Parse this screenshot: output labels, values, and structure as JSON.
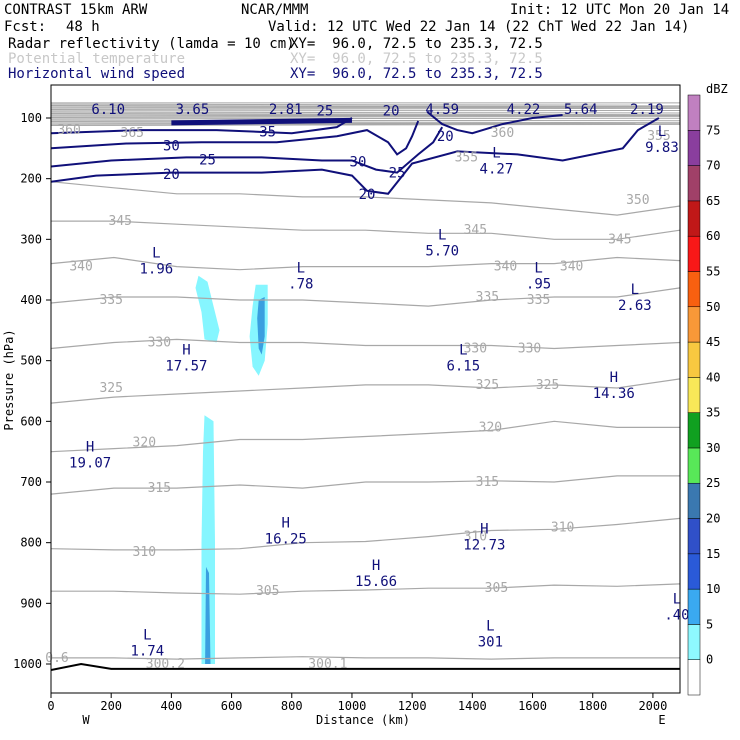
{
  "header": {
    "model": "CONTRAST 15km ARW",
    "org": "NCAR/MMM",
    "init": "Init: 12 UTC Mon 20 Jan 14",
    "fcst_label": "Fcst:",
    "fcst_value": "48 h",
    "valid": "Valid: 12 UTC Wed 22 Jan 14 (22 ChT Wed 22 Jan 14)",
    "fields": [
      {
        "name": "Radar reflectivity (lamda = 10 cm)",
        "xy": "XY=  96.0, 72.5 to 235.3, 72.5",
        "color": "#000000"
      },
      {
        "name": "Potential temperature",
        "xy": "XY=  96.0, 72.5 to 235.3, 72.5",
        "color": "#c8c8c8"
      },
      {
        "name": "Horizontal wind speed",
        "xy": "XY=  96.0, 72.5 to 235.3, 72.5",
        "color": "#10107a"
      }
    ]
  },
  "colors": {
    "theta": "#a8a8a8",
    "wind": "#10107a",
    "hl_label": "#10107a",
    "reflect_light": "#86f6ff",
    "reflect_mid": "#3a9fe0",
    "terrain": "#000000"
  },
  "chart_data": {
    "type": "cross-section",
    "xlabel": "Distance (km)",
    "ylabel": "Pressure (hPa)",
    "xlim": [
      0,
      2090
    ],
    "ylim_hPa": [
      1050,
      75
    ],
    "x_ticks": [
      0,
      200,
      400,
      600,
      800,
      1000,
      1200,
      1400,
      1600,
      1800,
      2000
    ],
    "y_ticks": [
      100,
      200,
      300,
      400,
      500,
      600,
      700,
      800,
      900,
      1000
    ],
    "x_end_labels": {
      "left": "W",
      "right": "E"
    },
    "colorbar": {
      "unit": "dBZ",
      "levels": [
        0,
        5,
        10,
        15,
        20,
        25,
        30,
        35,
        40,
        45,
        50,
        55,
        60,
        65,
        70,
        75
      ],
      "colors": [
        "#ffffff",
        "#8ef9ff",
        "#3aa9f0",
        "#2a5ad8",
        "#3050c8",
        "#3a78b0",
        "#58e858",
        "#10a020",
        "#f8e858",
        "#f8c840",
        "#f89838",
        "#f86010",
        "#f81818",
        "#c01818",
        "#a04068",
        "#8a3e9e",
        "#c080c0"
      ]
    },
    "theta_contours": [
      {
        "level": 300,
        "y": [
          990,
          990,
          992,
          990,
          988,
          990,
          990,
          992,
          990,
          990,
          990
        ]
      },
      {
        "level": 305,
        "y": [
          880,
          880,
          883,
          885,
          880,
          878,
          875,
          875,
          870,
          872,
          868
        ]
      },
      {
        "level": 310,
        "y": [
          810,
          812,
          812,
          810,
          800,
          798,
          790,
          780,
          778,
          770,
          760
        ]
      },
      {
        "level": 315,
        "y": [
          720,
          710,
          710,
          705,
          710,
          700,
          700,
          698,
          700,
          690,
          690
        ]
      },
      {
        "level": 320,
        "y": [
          650,
          645,
          640,
          630,
          630,
          625,
          620,
          615,
          600,
          610,
          610
        ]
      },
      {
        "level": 325,
        "y": [
          570,
          560,
          555,
          550,
          545,
          540,
          540,
          545,
          540,
          545,
          530
        ]
      },
      {
        "level": 330,
        "y": [
          480,
          470,
          465,
          470,
          470,
          475,
          475,
          475,
          480,
          475,
          470
        ]
      },
      {
        "level": 335,
        "y": [
          405,
          395,
          395,
          400,
          400,
          405,
          410,
          400,
          395,
          395,
          380
        ]
      },
      {
        "level": 340,
        "y": [
          340,
          330,
          345,
          350,
          345,
          345,
          345,
          340,
          340,
          330,
          335
        ]
      },
      {
        "level": 345,
        "y": [
          270,
          270,
          275,
          280,
          285,
          285,
          290,
          290,
          300,
          300,
          285
        ]
      },
      {
        "level": 350,
        "y": [
          205,
          215,
          225,
          225,
          230,
          230,
          235,
          240,
          250,
          260,
          245
        ]
      }
    ],
    "theta_labels": [
      {
        "text": "300.2",
        "x": 380,
        "p": 1000
      },
      {
        "text": "300.1",
        "x": 920,
        "p": 1000
      },
      {
        "text": "305",
        "x": 720,
        "p": 880
      },
      {
        "text": "305",
        "x": 1480,
        "p": 875
      },
      {
        "text": "310",
        "x": 310,
        "p": 815
      },
      {
        "text": "310",
        "x": 1410,
        "p": 790
      },
      {
        "text": "310",
        "x": 1700,
        "p": 775
      },
      {
        "text": "315",
        "x": 360,
        "p": 710
      },
      {
        "text": "315",
        "x": 1450,
        "p": 700
      },
      {
        "text": "320",
        "x": 310,
        "p": 635
      },
      {
        "text": "320",
        "x": 1460,
        "p": 610
      },
      {
        "text": "325",
        "x": 200,
        "p": 545
      },
      {
        "text": "325",
        "x": 1450,
        "p": 540
      },
      {
        "text": "325",
        "x": 1650,
        "p": 540
      },
      {
        "text": "330",
        "x": 360,
        "p": 470
      },
      {
        "text": "330",
        "x": 1410,
        "p": 480
      },
      {
        "text": "330",
        "x": 1590,
        "p": 480
      },
      {
        "text": "335",
        "x": 200,
        "p": 400
      },
      {
        "text": "335",
        "x": 1450,
        "p": 395
      },
      {
        "text": "335",
        "x": 1620,
        "p": 400
      },
      {
        "text": "340",
        "x": 100,
        "p": 345
      },
      {
        "text": "340",
        "x": 1510,
        "p": 345
      },
      {
        "text": "340",
        "x": 1730,
        "p": 345
      },
      {
        "text": "345",
        "x": 230,
        "p": 270
      },
      {
        "text": "345",
        "x": 1410,
        "p": 285
      },
      {
        "text": "345",
        "x": 1890,
        "p": 300
      },
      {
        "text": "350",
        "x": 1950,
        "p": 235
      },
      {
        "text": "355",
        "x": 1380,
        "p": 165
      },
      {
        "text": "355",
        "x": 2020,
        "p": 130
      },
      {
        "text": "360",
        "x": 60,
        "p": 120
      },
      {
        "text": "360",
        "x": 1500,
        "p": 125
      },
      {
        "text": "365",
        "x": 270,
        "p": 125
      },
      {
        "text": "0.6",
        "x": 20,
        "p": 990
      }
    ],
    "wind_contours": [
      {
        "level": 20,
        "points": [
          [
            0,
            205
          ],
          [
            150,
            195
          ],
          [
            400,
            190
          ],
          [
            700,
            190
          ],
          [
            900,
            185
          ],
          [
            1000,
            195
          ],
          [
            1050,
            220
          ],
          [
            1120,
            225
          ],
          [
            1200,
            175
          ],
          [
            1350,
            155
          ],
          [
            1550,
            160
          ],
          [
            1700,
            170
          ],
          [
            1900,
            150
          ],
          [
            1950,
            120
          ],
          [
            2020,
            100
          ]
        ]
      },
      {
        "level": 25,
        "points": [
          [
            0,
            180
          ],
          [
            200,
            170
          ],
          [
            450,
            165
          ],
          [
            700,
            165
          ],
          [
            900,
            170
          ],
          [
            1000,
            170
          ],
          [
            1080,
            185
          ],
          [
            1150,
            190
          ],
          [
            1220,
            160
          ],
          [
            1270,
            140
          ],
          [
            1300,
            115
          ]
        ]
      },
      {
        "level": 30,
        "points": [
          [
            0,
            150
          ],
          [
            250,
            142
          ],
          [
            500,
            140
          ],
          [
            750,
            140
          ],
          [
            950,
            130
          ],
          [
            1050,
            120
          ],
          [
            1120,
            140
          ],
          [
            1150,
            160
          ],
          [
            1180,
            150
          ],
          [
            1200,
            130
          ],
          [
            1220,
            105
          ]
        ]
      },
      {
        "level": 35,
        "points": [
          [
            0,
            125
          ],
          [
            300,
            120
          ],
          [
            550,
            120
          ],
          [
            800,
            125
          ],
          [
            950,
            115
          ],
          [
            1000,
            100
          ]
        ]
      },
      {
        "level": 25,
        "points": [
          [
            1250,
            90
          ],
          [
            1300,
            110
          ],
          [
            1350,
            120
          ],
          [
            1400,
            125
          ],
          [
            1500,
            110
          ],
          [
            1600,
            100
          ],
          [
            1700,
            95
          ]
        ]
      }
    ],
    "wind_labels": [
      {
        "text": "20",
        "x": 400,
        "p": 192
      },
      {
        "text": "25",
        "x": 520,
        "p": 168
      },
      {
        "text": "30",
        "x": 400,
        "p": 145
      },
      {
        "text": "35",
        "x": 720,
        "p": 122
      },
      {
        "text": "30",
        "x": 1020,
        "p": 172
      },
      {
        "text": "25",
        "x": 1150,
        "p": 190
      },
      {
        "text": "20",
        "x": 1050,
        "p": 225
      },
      {
        "text": "20",
        "x": 1130,
        "p": 88
      },
      {
        "text": "20",
        "x": 1310,
        "p": 130
      },
      {
        "text": "25",
        "x": 910,
        "p": 88
      }
    ],
    "upper_values": [
      {
        "text": "6.10",
        "x": 190
      },
      {
        "text": "3.65",
        "x": 470
      },
      {
        "text": "2.81",
        "x": 780
      },
      {
        "text": "4.59",
        "x": 1300
      },
      {
        "text": "4.22",
        "x": 1570
      },
      {
        "text": "5.64",
        "x": 1760
      },
      {
        "text": "2.19",
        "x": 1980
      }
    ],
    "hl_markers": [
      {
        "sym": "L",
        "value": "1.96",
        "x": 350,
        "p": 330
      },
      {
        "sym": "L",
        "value": ".78",
        "x": 830,
        "p": 355
      },
      {
        "sym": "L",
        "value": "5.70",
        "x": 1300,
        "p": 300
      },
      {
        "sym": "L",
        "value": "4.27",
        "x": 1480,
        "p": 165
      },
      {
        "sym": "L",
        "value": ".95",
        "x": 1620,
        "p": 355
      },
      {
        "sym": "L",
        "value": "2.63",
        "x": 1940,
        "p": 390
      },
      {
        "sym": "L",
        "value": "9.83",
        "x": 2030,
        "p": 130
      },
      {
        "sym": "H",
        "value": "17.57",
        "x": 450,
        "p": 490
      },
      {
        "sym": "L",
        "value": "6.15",
        "x": 1370,
        "p": 490
      },
      {
        "sym": "H",
        "value": "14.36",
        "x": 1870,
        "p": 535
      },
      {
        "sym": "H",
        "value": "19.07",
        "x": 130,
        "p": 650
      },
      {
        "sym": "H",
        "value": "16.25",
        "x": 780,
        "p": 775
      },
      {
        "sym": "H",
        "value": "12.73",
        "x": 1440,
        "p": 785
      },
      {
        "sym": "H",
        "value": "15.66",
        "x": 1080,
        "p": 845
      },
      {
        "sym": "L",
        "value": ".40",
        "x": 2080,
        "p": 900
      },
      {
        "sym": "L",
        "value": "1.74",
        "x": 320,
        "p": 960
      },
      {
        "sym": "L",
        "value": "301",
        "x": 1460,
        "p": 945
      }
    ],
    "reflectivity_regions": [
      {
        "dbz": 5,
        "points": [
          [
            490,
            360
          ],
          [
            520,
            370
          ],
          [
            540,
            410
          ],
          [
            560,
            450
          ],
          [
            550,
            470
          ],
          [
            510,
            465
          ],
          [
            500,
            420
          ],
          [
            480,
            380
          ]
        ]
      },
      {
        "dbz": 5,
        "points": [
          [
            680,
            375
          ],
          [
            720,
            375
          ],
          [
            720,
            440
          ],
          [
            710,
            500
          ],
          [
            690,
            525
          ],
          [
            670,
            510
          ],
          [
            660,
            460
          ],
          [
            670,
            410
          ]
        ]
      },
      {
        "dbz": 10,
        "points": [
          [
            690,
            400
          ],
          [
            710,
            395
          ],
          [
            710,
            460
          ],
          [
            700,
            490
          ],
          [
            690,
            480
          ],
          [
            685,
            430
          ]
        ]
      },
      {
        "dbz": 5,
        "points": [
          [
            510,
            590
          ],
          [
            540,
            600
          ],
          [
            545,
            800
          ],
          [
            545,
            1000
          ],
          [
            500,
            1000
          ],
          [
            500,
            800
          ],
          [
            505,
            650
          ]
        ]
      },
      {
        "dbz": 10,
        "points": [
          [
            515,
            840
          ],
          [
            525,
            850
          ],
          [
            530,
            1000
          ],
          [
            512,
            1000
          ]
        ]
      }
    ]
  }
}
